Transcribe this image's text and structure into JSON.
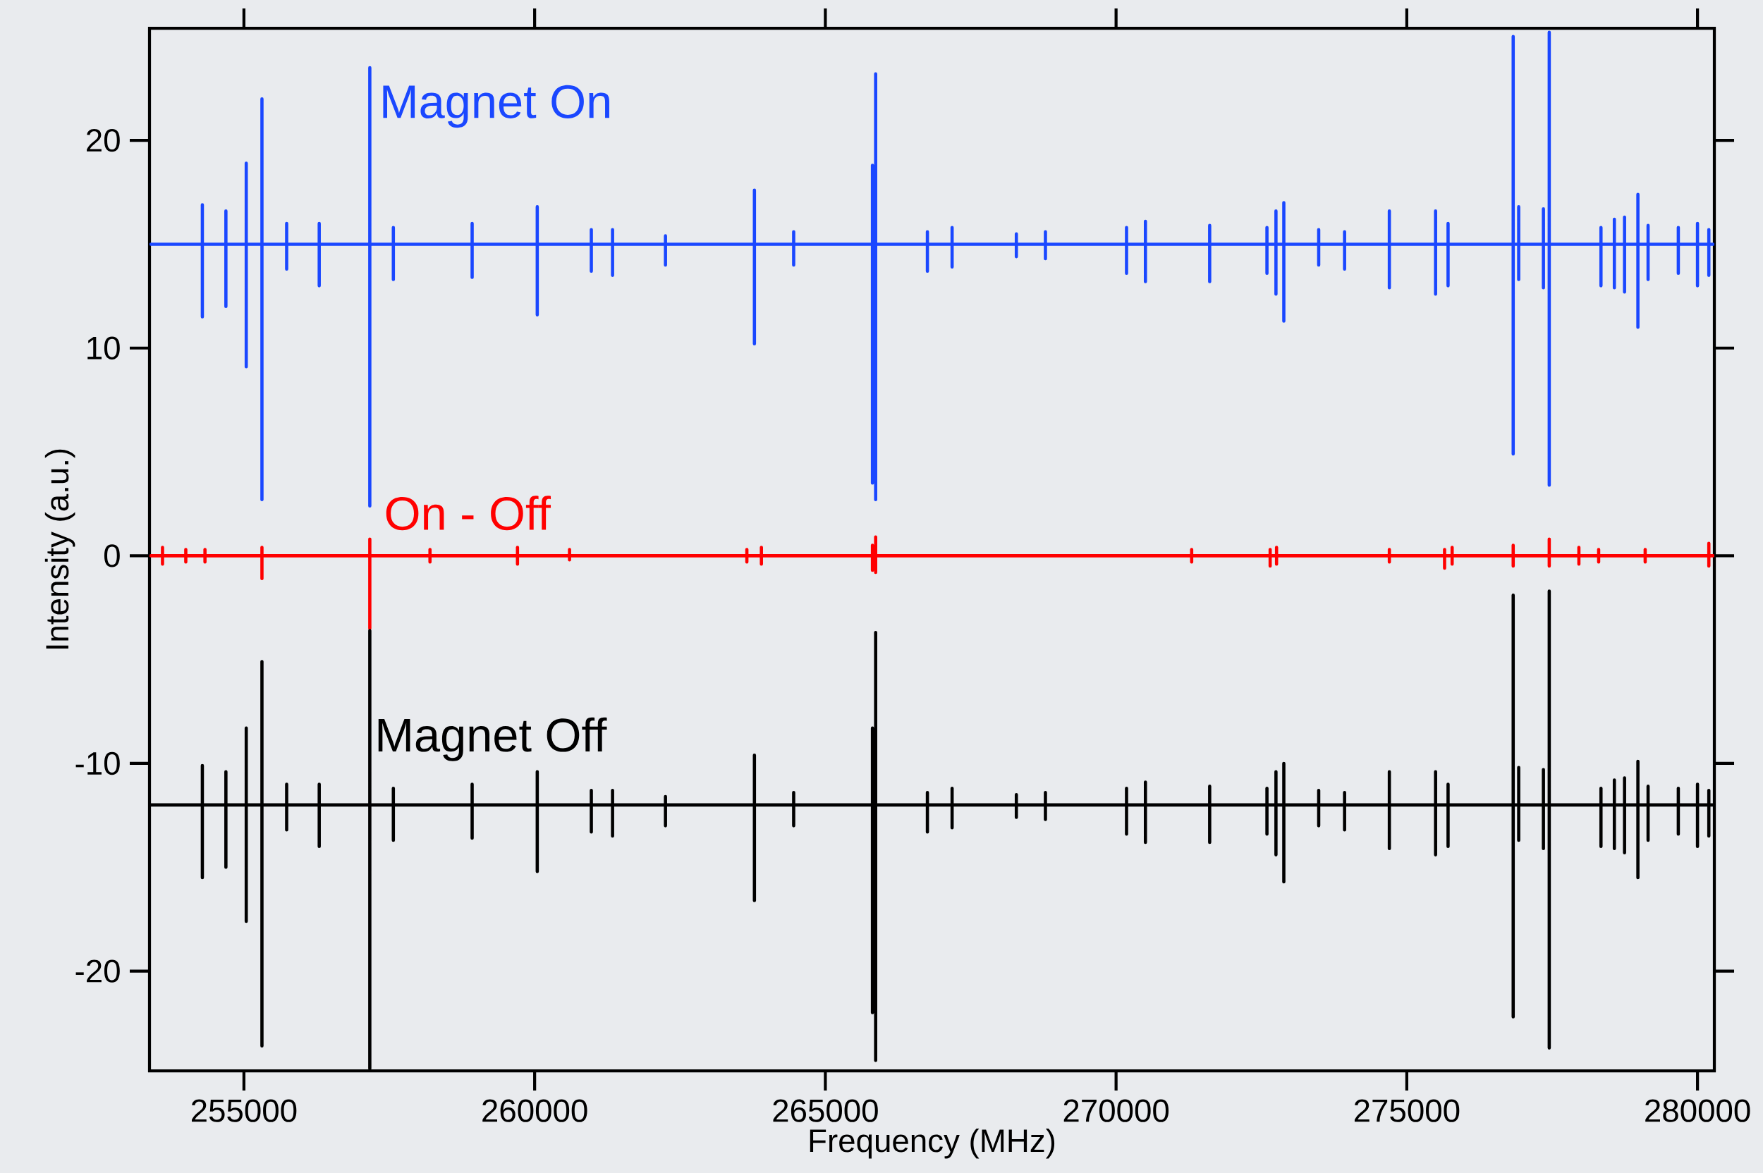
{
  "chart_data": {
    "type": "line",
    "xlabel": "Frequency (MHz)",
    "ylabel": "Intensity (a.u.)",
    "xlim": [
      253376,
      280290
    ],
    "ylim": [
      -24.8,
      25.4
    ],
    "xticks": [
      255000,
      260000,
      265000,
      270000,
      275000,
      280000
    ],
    "yticks": [
      -20,
      -10,
      0,
      10,
      20
    ],
    "series": [
      {
        "name": "Magnet On",
        "color": "#1a47ff",
        "x": [
          253400,
          254285,
          254285,
          254285,
          254285,
          254690,
          254690,
          254690,
          254690,
          255040,
          255040,
          255040,
          255040,
          255310,
          255310,
          255310,
          255310,
          255735,
          255735,
          255735,
          255735,
          256295,
          256295,
          256295,
          256295,
          257165,
          257165,
          257165,
          257165,
          257570,
          257570,
          257570,
          257570,
          258925,
          258925,
          258925,
          258925,
          260045,
          260045,
          260045,
          260045,
          260975,
          260975,
          260975,
          260975,
          261340,
          261340,
          261340,
          261340,
          262250,
          262250,
          262250,
          262250,
          263780,
          263780,
          263780,
          263780,
          264455,
          264455,
          264455,
          264455,
          265810,
          265810,
          265810,
          265810,
          265865,
          265865,
          265865,
          265865,
          266755,
          266755,
          266755,
          266755,
          267180,
          267180,
          267180,
          267180,
          268285,
          268285,
          268285,
          268285,
          268785,
          268785,
          268785,
          268785,
          270180,
          270180,
          270180,
          270180,
          270505,
          270505,
          270505,
          270505,
          271610,
          271610,
          271610,
          271610,
          272595,
          272595,
          272595,
          272595,
          272750,
          272750,
          272750,
          272750,
          272885,
          272885,
          272885,
          272885,
          273485,
          273485,
          273485,
          273485,
          273930,
          273930,
          273930,
          273930,
          274700,
          274700,
          274700,
          274700,
          275495,
          275495,
          275495,
          275495,
          275710,
          275710,
          275710,
          275710,
          276830,
          276830,
          276830,
          276830,
          276925,
          276925,
          276925,
          276925,
          277350,
          277350,
          277350,
          277350,
          277450,
          277450,
          277450,
          277450,
          278340,
          278340,
          278340,
          278340,
          278570,
          278570,
          278570,
          278570,
          278745,
          278745,
          278745,
          278745,
          278975,
          278975,
          278975,
          278975,
          279150,
          279150,
          279150,
          279150,
          279670,
          279670,
          279670,
          279670,
          280000,
          280000,
          280000,
          280000,
          280195,
          280195,
          280195,
          280195,
          280270
        ],
        "values": [
          15,
          15,
          16.9,
          11.5,
          15,
          15,
          16.6,
          12.0,
          15,
          15,
          18.9,
          9.1,
          15,
          15,
          22.0,
          2.7,
          15,
          15,
          16.0,
          13.8,
          15,
          15,
          16.0,
          13.0,
          15,
          15,
          23.5,
          2.4,
          15,
          15,
          15.8,
          13.3,
          15,
          15,
          16.0,
          13.4,
          15,
          15,
          16.8,
          11.6,
          15,
          15,
          15.7,
          13.7,
          15,
          15,
          15.7,
          13.5,
          15,
          15,
          15.4,
          14.0,
          15,
          15,
          17.6,
          10.2,
          15,
          15,
          15.6,
          14.0,
          15,
          15,
          18.8,
          3.5,
          15,
          15,
          23.2,
          2.7,
          15,
          15,
          15.6,
          13.7,
          15,
          15,
          15.8,
          13.9,
          15,
          15,
          15.5,
          14.4,
          15,
          15,
          15.6,
          14.3,
          15,
          15,
          15.8,
          13.6,
          15,
          15,
          16.1,
          13.2,
          15,
          15,
          15.9,
          13.2,
          15,
          15,
          15.8,
          13.6,
          15,
          15,
          16.6,
          12.6,
          15,
          15,
          17.0,
          11.3,
          15,
          15,
          15.7,
          14.0,
          15,
          15,
          15.6,
          13.8,
          15,
          15,
          16.6,
          12.9,
          15,
          15,
          16.6,
          12.6,
          15,
          15,
          16.0,
          13.0,
          15,
          15,
          25.0,
          4.9,
          15,
          15,
          16.8,
          13.3,
          15,
          15,
          16.7,
          12.9,
          15,
          15,
          25.2,
          3.4,
          15,
          15,
          15.8,
          13.0,
          15,
          15,
          16.2,
          12.9,
          15,
          15,
          16.3,
          12.7,
          15,
          15,
          17.4,
          11.0,
          15,
          15,
          15.9,
          13.3,
          15,
          15,
          15.8,
          13.6,
          15,
          15,
          16.0,
          13.0,
          15,
          15,
          15.7,
          13.5,
          15,
          15
        ]
      },
      {
        "name": "On - Off",
        "color": "#ff0000",
        "x": [
          253400,
          253600,
          253600,
          253600,
          253600,
          254000,
          254000,
          254000,
          254000,
          254330,
          254330,
          254330,
          254330,
          255310,
          255310,
          255310,
          255310,
          257165,
          257165,
          257165,
          257165,
          258200,
          258200,
          258200,
          258200,
          259705,
          259705,
          259705,
          259705,
          260600,
          260600,
          260600,
          260600,
          263650,
          263650,
          263650,
          263650,
          263900,
          263900,
          263900,
          263900,
          265810,
          265810,
          265810,
          265810,
          265865,
          265865,
          265865,
          265865,
          271300,
          271300,
          271300,
          271300,
          272650,
          272650,
          272650,
          272650,
          272760,
          272760,
          272760,
          272760,
          274700,
          274700,
          274700,
          274700,
          275650,
          275650,
          275650,
          275650,
          275780,
          275780,
          275780,
          275780,
          276830,
          276830,
          276830,
          276830,
          277450,
          277450,
          277450,
          277450,
          277960,
          277960,
          277960,
          277960,
          278300,
          278300,
          278300,
          278300,
          279100,
          279100,
          279100,
          279100,
          280195,
          280195,
          280195,
          280195,
          280270
        ],
        "values": [
          0,
          0,
          0.4,
          -0.4,
          0,
          0,
          0.3,
          -0.3,
          0,
          0,
          0.3,
          -0.3,
          0,
          0,
          0.4,
          -1.1,
          0,
          0,
          0.8,
          -3.5,
          0,
          0,
          0.3,
          -0.3,
          0,
          0,
          0.4,
          -0.4,
          0,
          0,
          0.3,
          -0.2,
          0,
          0,
          0.3,
          -0.3,
          0,
          0,
          0.4,
          -0.4,
          0,
          0,
          0.5,
          -0.7,
          0,
          0,
          0.9,
          -0.8,
          0,
          0,
          0.3,
          -0.3,
          0,
          0,
          0.3,
          -0.5,
          0,
          0,
          0.4,
          -0.4,
          0,
          0,
          0.3,
          -0.3,
          0,
          0,
          0.3,
          -0.6,
          0,
          0,
          0.4,
          -0.4,
          0,
          0,
          0.5,
          -0.5,
          0,
          0,
          0.8,
          -0.5,
          0,
          0,
          0.4,
          -0.4,
          0,
          0,
          0.3,
          -0.3,
          0,
          0,
          0.3,
          -0.3,
          0,
          0,
          0.6,
          -0.5,
          0,
          0
        ]
      },
      {
        "name": "Magnet Off",
        "color": "#000000",
        "x": [
          253400,
          254285,
          254285,
          254285,
          254285,
          254690,
          254690,
          254690,
          254690,
          255040,
          255040,
          255040,
          255040,
          255310,
          255310,
          255310,
          255310,
          255735,
          255735,
          255735,
          255735,
          256295,
          256295,
          256295,
          256295,
          257165,
          257165,
          257165,
          257165,
          257570,
          257570,
          257570,
          257570,
          258925,
          258925,
          258925,
          258925,
          260045,
          260045,
          260045,
          260045,
          260975,
          260975,
          260975,
          260975,
          261340,
          261340,
          261340,
          261340,
          262250,
          262250,
          262250,
          262250,
          263780,
          263780,
          263780,
          263780,
          264455,
          264455,
          264455,
          264455,
          265810,
          265810,
          265810,
          265810,
          265865,
          265865,
          265865,
          265865,
          266755,
          266755,
          266755,
          266755,
          267180,
          267180,
          267180,
          267180,
          268285,
          268285,
          268285,
          268285,
          268785,
          268785,
          268785,
          268785,
          270180,
          270180,
          270180,
          270180,
          270505,
          270505,
          270505,
          270505,
          271610,
          271610,
          271610,
          271610,
          272595,
          272595,
          272595,
          272595,
          272750,
          272750,
          272750,
          272750,
          272885,
          272885,
          272885,
          272885,
          273485,
          273485,
          273485,
          273485,
          273930,
          273930,
          273930,
          273930,
          274700,
          274700,
          274700,
          274700,
          275495,
          275495,
          275495,
          275495,
          275710,
          275710,
          275710,
          275710,
          276830,
          276830,
          276830,
          276830,
          276925,
          276925,
          276925,
          276925,
          277350,
          277350,
          277350,
          277350,
          277450,
          277450,
          277450,
          277450,
          278340,
          278340,
          278340,
          278340,
          278570,
          278570,
          278570,
          278570,
          278745,
          278745,
          278745,
          278745,
          278975,
          278975,
          278975,
          278975,
          279150,
          279150,
          279150,
          279150,
          279670,
          279670,
          279670,
          279670,
          280000,
          280000,
          280000,
          280000,
          280195,
          280195,
          280195,
          280195,
          280270
        ],
        "values": [
          -12,
          -12,
          -10.1,
          -15.5,
          -12,
          -12,
          -10.4,
          -15.0,
          -12,
          -12,
          -8.3,
          -17.6,
          -12,
          -12,
          -5.1,
          -23.6,
          -12,
          -12,
          -11.0,
          -13.2,
          -12,
          -12,
          -11.0,
          -14.0,
          -12,
          -12,
          -3.6,
          -24.7,
          -12,
          -12,
          -11.2,
          -13.7,
          -12,
          -12,
          -11.0,
          -13.6,
          -12,
          -12,
          -10.4,
          -15.2,
          -12,
          -12,
          -11.3,
          -13.3,
          -12,
          -12,
          -11.3,
          -13.5,
          -12,
          -12,
          -11.6,
          -13.0,
          -12,
          -12,
          -9.6,
          -16.6,
          -12,
          -12,
          -11.4,
          -13.0,
          -12,
          -12,
          -8.3,
          -22.0,
          -12,
          -12,
          -3.7,
          -24.3,
          -12,
          -12,
          -11.4,
          -13.3,
          -12,
          -12,
          -11.2,
          -13.1,
          -12,
          -12,
          -11.5,
          -12.6,
          -12,
          -12,
          -11.4,
          -12.7,
          -12,
          -12,
          -11.2,
          -13.4,
          -12,
          -12,
          -10.9,
          -13.8,
          -12,
          -12,
          -11.1,
          -13.8,
          -12,
          -12,
          -11.2,
          -13.4,
          -12,
          -12,
          -10.4,
          -14.4,
          -12,
          -12,
          -10.0,
          -15.7,
          -12,
          -12,
          -11.3,
          -13.0,
          -12,
          -12,
          -11.4,
          -13.2,
          -12,
          -12,
          -10.4,
          -14.1,
          -12,
          -12,
          -10.4,
          -14.4,
          -12,
          -12,
          -11.0,
          -14.0,
          -12,
          -12,
          -1.9,
          -22.2,
          -12,
          -12,
          -10.2,
          -13.7,
          -12,
          -12,
          -10.3,
          -14.1,
          -12,
          -12,
          -1.7,
          -23.7,
          -12,
          -12,
          -11.2,
          -14.0,
          -12,
          -12,
          -10.8,
          -14.1,
          -12,
          -12,
          -10.7,
          -14.3,
          -12,
          -12,
          -9.9,
          -15.5,
          -12,
          -12,
          -11.1,
          -13.7,
          -12,
          -12,
          -11.2,
          -13.4,
          -12,
          -12,
          -11.0,
          -14.0,
          -12,
          -12,
          -11.3,
          -13.5,
          -12,
          -12
        ]
      }
    ]
  }
}
